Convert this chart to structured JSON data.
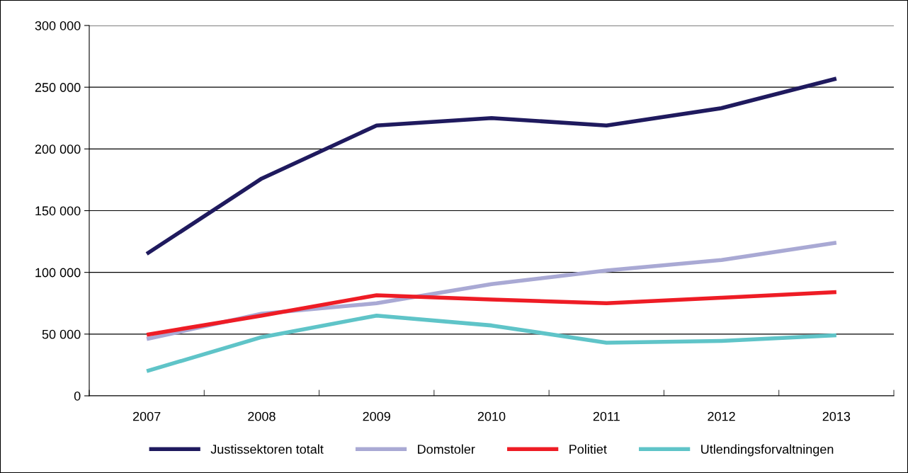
{
  "chart_data": {
    "type": "line",
    "categories": [
      "2007",
      "2008",
      "2009",
      "2010",
      "2011",
      "2012",
      "2013"
    ],
    "series": [
      {
        "name": "Justissektoren totalt",
        "color": "#1f1a5e",
        "values": [
          115000,
          176000,
          219000,
          225000,
          219000,
          233000,
          257000
        ]
      },
      {
        "name": "Domstoler",
        "color": "#a9a9d4",
        "values": [
          46000,
          66500,
          75000,
          90500,
          101500,
          110000,
          124000
        ]
      },
      {
        "name": "Politiet",
        "color": "#ee1c25",
        "values": [
          49500,
          65000,
          81500,
          78000,
          75000,
          79500,
          84000
        ]
      },
      {
        "name": "Utlendingsforvaltningen",
        "color": "#5fc4c8",
        "values": [
          20000,
          47500,
          65000,
          57000,
          43000,
          44500,
          49000
        ]
      }
    ],
    "ylim": [
      0,
      300000
    ],
    "yticks": [
      {
        "value": 0,
        "label": "0"
      },
      {
        "value": 50000,
        "label": "50 000"
      },
      {
        "value": 100000,
        "label": "100 000"
      },
      {
        "value": 150000,
        "label": "150 000"
      },
      {
        "value": 200000,
        "label": "200 000"
      },
      {
        "value": 250000,
        "label": "250 000"
      },
      {
        "value": 300000,
        "label": "300 000"
      }
    ],
    "grid": "y",
    "legend": "bottom",
    "marker": "none",
    "line_style": "solid"
  }
}
